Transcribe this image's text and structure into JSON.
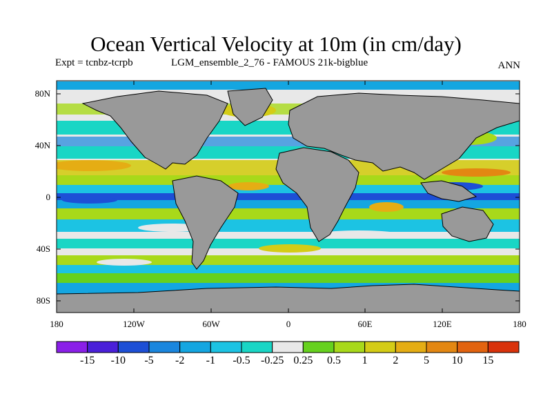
{
  "title": "Ocean Vertical Velocity at 10m (in cm/day)",
  "subtitle_left": "Expt = tcnbz-tcrpb",
  "subtitle_center": "LGM_ensemble_2_76 - FAMOUS 21k-bigblue",
  "season": "ANN",
  "lat_ticks": [
    "80N",
    "40N",
    "0",
    "40S",
    "80S"
  ],
  "lon_ticks": [
    "180",
    "120W",
    "60W",
    "0",
    "60E",
    "120E",
    "180"
  ],
  "colorbar": {
    "labels": [
      "-15",
      "-10",
      "-5",
      "-2",
      "-1",
      "-0.5",
      "-0.25",
      "0.25",
      "0.5",
      "1",
      "2",
      "5",
      "10",
      "15"
    ],
    "colors": [
      "#8a1fe8",
      "#4a1fd9",
      "#1d4fd6",
      "#1a86de",
      "#14a6e1",
      "#1cc3e3",
      "#19d6c5",
      "#e8e8e8",
      "#66d11e",
      "#a8d91a",
      "#d4cc16",
      "#e5ad14",
      "#e38712",
      "#e2630f",
      "#d9320b"
    ]
  },
  "colors": {
    "land": "#999999",
    "missing": "#e8e8e8",
    "coast": "#000000"
  }
}
